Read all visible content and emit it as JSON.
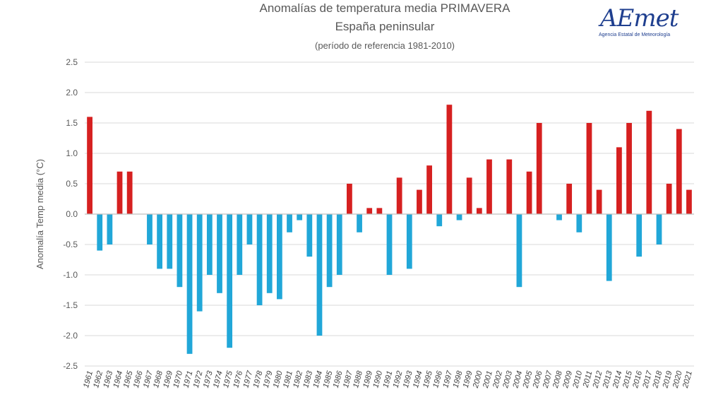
{
  "logo": {
    "brand": "AEmet",
    "caption": "Agencia Estatal de Meteorología"
  },
  "colors": {
    "positive": "#d62020",
    "negative": "#21a7d8",
    "grid": "#d9d9d9",
    "axis": "#bfbfbf"
  },
  "chart_data": {
    "type": "bar",
    "title": "Anomalías de temperatura media PRIMAVERA",
    "subtitle": "España peninsular",
    "note": "(período de referencia 1981-2010)",
    "xlabel": "",
    "ylabel": "Anomalía Temp media (°C)",
    "ylim": [
      -2.5,
      2.5
    ],
    "yticks": [
      "2.5",
      "2.0",
      "1.5",
      "1.0",
      "0.5",
      "0.0",
      "-0.5",
      "-1.0",
      "-1.5",
      "-2.0",
      "-2.5"
    ],
    "ytick_values": [
      2.5,
      2.0,
      1.5,
      1.0,
      0.5,
      0.0,
      -0.5,
      -1.0,
      -1.5,
      -2.0,
      -2.5
    ],
    "grid": true,
    "categories": [
      "1961",
      "1962",
      "1963",
      "1964",
      "1965",
      "1966",
      "1967",
      "1968",
      "1969",
      "1970",
      "1971",
      "1972",
      "1973",
      "1974",
      "1975",
      "1976",
      "1977",
      "1978",
      "1979",
      "1980",
      "1981",
      "1982",
      "1983",
      "1984",
      "1985",
      "1986",
      "1987",
      "1988",
      "1989",
      "1990",
      "1991",
      "1992",
      "1993",
      "1994",
      "1995",
      "1996",
      "1997",
      "1998",
      "1999",
      "2000",
      "2001",
      "2002",
      "2003",
      "2004",
      "2005",
      "2006",
      "2007",
      "2008",
      "2009",
      "2010",
      "2011",
      "2012",
      "2013",
      "2014",
      "2015",
      "2016",
      "2017",
      "2018",
      "2019",
      "2020",
      "2021"
    ],
    "values": [
      1.6,
      -0.6,
      -0.5,
      0.7,
      0.7,
      0.0,
      -0.5,
      -0.9,
      -0.9,
      -1.2,
      -2.3,
      -1.6,
      -1.0,
      -1.3,
      -2.2,
      -1.0,
      -0.5,
      -1.5,
      -1.3,
      -1.4,
      -0.3,
      -0.1,
      -0.7,
      -2.0,
      -1.2,
      -1.0,
      0.5,
      -0.3,
      0.1,
      0.1,
      -1.0,
      0.6,
      -0.9,
      0.4,
      0.8,
      -0.2,
      1.8,
      -0.1,
      0.6,
      0.1,
      0.9,
      0.0,
      0.9,
      -1.2,
      0.7,
      1.5,
      0.0,
      -0.1,
      0.5,
      -0.3,
      1.5,
      0.4,
      -1.1,
      1.1,
      1.5,
      -0.7,
      1.7,
      -0.5,
      0.5,
      1.4,
      0.4
    ]
  }
}
